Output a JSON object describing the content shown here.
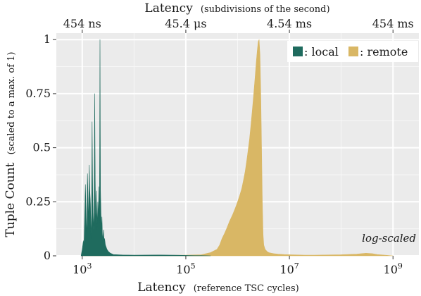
{
  "chart_data": {
    "type": "area",
    "scale": {
      "x": "log10",
      "y": "linear"
    },
    "xlim": [
      316,
      3162277660
    ],
    "ylim": [
      0,
      1.03
    ],
    "grid": true,
    "legend_position": "top-right",
    "xaxis_bottom": {
      "label": "Latency",
      "label_sub": "(reference TSC cycles)",
      "ticks": [
        {
          "value": 1000,
          "base": "10",
          "exp": "3"
        },
        {
          "value": 100000,
          "base": "10",
          "exp": "5"
        },
        {
          "value": 10000000,
          "base": "10",
          "exp": "7"
        },
        {
          "value": 1000000000,
          "base": "10",
          "exp": "9"
        }
      ]
    },
    "xaxis_top": {
      "label": "Latency",
      "label_sub": "(subdivisions of the second)",
      "ticks": [
        {
          "value": 1000,
          "label": "454 ns"
        },
        {
          "value": 100000,
          "label": "45.4 μs"
        },
        {
          "value": 10000000,
          "label": "4.54 ms"
        },
        {
          "value": 1000000000,
          "label": "454 ms"
        }
      ]
    },
    "yaxis": {
      "label": "Tuple Count",
      "label_sub": "(scaled to a max. of 1)",
      "ticks": [
        {
          "value": 0,
          "label": "0"
        },
        {
          "value": 0.25,
          "label": "0.25"
        },
        {
          "value": 0.5,
          "label": "0.5"
        },
        {
          "value": 0.75,
          "label": "0.75"
        },
        {
          "value": 1,
          "label": "1"
        }
      ]
    },
    "annotation": "log-scaled",
    "series": [
      {
        "name": "local",
        "legend_label": ": local",
        "color": "#1f6b5e",
        "x": [
          950,
          1000,
          1050,
          1080,
          1120,
          1150,
          1200,
          1230,
          1260,
          1300,
          1330,
          1370,
          1400,
          1440,
          1480,
          1520,
          1550,
          1590,
          1620,
          1660,
          1700,
          1740,
          1780,
          1820,
          1860,
          1900,
          1950,
          2000,
          2050,
          2100,
          2150,
          2200,
          2250,
          2300,
          2350,
          2400,
          2450,
          2500,
          2550,
          2600,
          2650,
          2700,
          2800,
          2900,
          3000,
          3200,
          3500,
          4000,
          6000,
          10000,
          30000,
          60000,
          100000,
          150000,
          200000,
          300000
        ],
        "y": [
          0,
          0.03,
          0.07,
          0.05,
          0.2,
          0.33,
          0.15,
          0.1,
          0.38,
          0.25,
          0.15,
          0.42,
          0.3,
          0.24,
          0.08,
          0.2,
          0.62,
          0.3,
          0.2,
          0.12,
          0.2,
          0.75,
          0.35,
          0.2,
          0.15,
          0.3,
          0.12,
          0.25,
          0.18,
          0.32,
          0.15,
          1.0,
          0.3,
          0.2,
          0.12,
          0.18,
          0.1,
          0.07,
          0.1,
          0.12,
          0.06,
          0.08,
          0.05,
          0.04,
          0.03,
          0.02,
          0.012,
          0.006,
          0.004,
          0.003,
          0.004,
          0.003,
          0.002,
          0.001,
          0.001,
          0
        ]
      },
      {
        "name": "remote",
        "legend_label": ": remote",
        "color": "#d9b765",
        "x": [
          1000,
          3000,
          10000,
          30000,
          100000,
          200000,
          300000,
          400000,
          450000,
          500000,
          550000,
          600000,
          700000,
          800000,
          900000,
          1000000,
          1100000,
          1200000,
          1300000,
          1400000,
          1500000,
          1600000,
          1700000,
          1800000,
          1900000,
          2000000,
          2100000,
          2200000,
          2300000,
          2400000,
          2500000,
          2600000,
          2700000,
          2800000,
          2900000,
          3000000,
          3100000,
          3200000,
          3400000,
          3700000,
          4000000,
          4500000,
          5000000,
          6000000,
          8000000,
          10000000,
          15000000,
          20000000,
          30000000,
          50000000,
          100000000,
          200000000,
          300000000,
          400000000,
          500000000,
          700000000,
          1000000000
        ],
        "y": [
          0,
          0,
          0.001,
          0.002,
          0.003,
          0.005,
          0.015,
          0.03,
          0.05,
          0.08,
          0.1,
          0.12,
          0.16,
          0.19,
          0.22,
          0.25,
          0.28,
          0.31,
          0.35,
          0.39,
          0.44,
          0.49,
          0.54,
          0.6,
          0.66,
          0.72,
          0.78,
          0.84,
          0.9,
          0.95,
          0.99,
          1.0,
          0.93,
          0.75,
          0.5,
          0.25,
          0.1,
          0.05,
          0.03,
          0.02,
          0.015,
          0.012,
          0.01,
          0.008,
          0.006,
          0.005,
          0.004,
          0.003,
          0.003,
          0.004,
          0.005,
          0.008,
          0.012,
          0.01,
          0.006,
          0.003,
          0
        ]
      }
    ]
  }
}
